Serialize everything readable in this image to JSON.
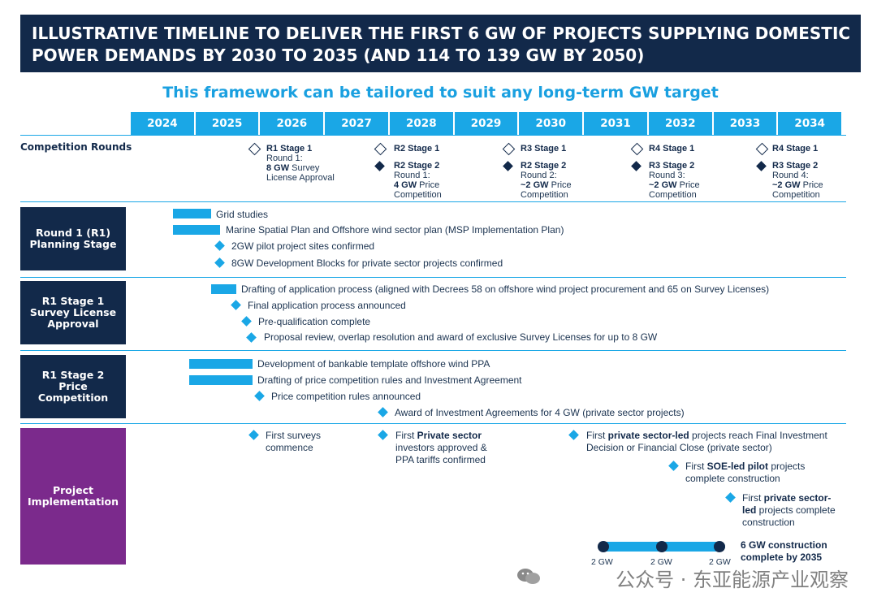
{
  "header": {
    "line1": "ILLUSTRATIVE TIMELINE TO DELIVER THE FIRST 6 GW OF PROJECTS SUPPLYING DOMESTIC",
    "line2": "POWER DEMANDS BY 2030 TO 2035 (AND 114 TO 139 GW BY 2050)"
  },
  "subtitle": "This framework can be tailored to suit any long-term GW target",
  "years": [
    "2024",
    "2025",
    "2026",
    "2027",
    "2028",
    "2029",
    "2030",
    "2031",
    "2032",
    "2033",
    "2034"
  ],
  "competition": {
    "label": "Competition Rounds",
    "r1": {
      "title": "R1 Stage 1",
      "l1": "Round 1:",
      "l2b": "8 GW",
      "l2": " Survey",
      "l3": "License Approval"
    },
    "rounds": [
      {
        "s1": "R2 Stage 1",
        "s2": "R2 Stage 2",
        "a": "Round 1:",
        "bold": "4 GW",
        "rest": " Price",
        "c": "Competition"
      },
      {
        "s1": "R3 Stage 1",
        "s2": "R2 Stage 2",
        "a": "Round 2:",
        "bold": "~2 GW",
        "rest": " Price",
        "c": "Competition"
      },
      {
        "s1": "R4 Stage 1",
        "s2": "R3 Stage 2",
        "a": "Round 3:",
        "bold": "~2 GW",
        "rest": " Price",
        "c": "Competition"
      },
      {
        "s1": "R4 Stage 1",
        "s2": "R3 Stage 2",
        "a": "Round 4:",
        "bold": "~2 GW",
        "rest": " Price",
        "c": "Competition"
      }
    ]
  },
  "rows": {
    "planning": {
      "label": "Round 1 (R1) Planning Stage",
      "items": [
        "Grid studies",
        "Marine Spatial Plan and Offshore wind sector plan (MSP Implementation Plan)",
        "2GW pilot project sites confirmed",
        "8GW Development Blocks for private sector projects confirmed"
      ]
    },
    "survey": {
      "label": "R1 Stage 1 Survey License Approval",
      "items": [
        "Drafting of application process (aligned with Decrees 58 on offshore wind project procurement and 65 on Survey Licenses)",
        "Final application process announced",
        "Pre-qualification complete",
        "Proposal review, overlap resolution and award of exclusive Survey Licenses for up to 8 GW"
      ]
    },
    "price": {
      "label": "R1 Stage 2 Price Competition",
      "items": [
        "Development of bankable template offshore wind PPA",
        "Drafting of price competition rules and Investment Agreement",
        "Price competition rules announced",
        "Award of Investment Agreements for 4 GW (private sector projects)"
      ]
    },
    "impl": {
      "label": "Project Implementation",
      "m1a": "First surveys",
      "m1b": "commence",
      "m2pre": "First ",
      "m2b": "Private sector",
      "m2c": "investors approved &",
      "m2d": "PPA tariffs confirmed",
      "m3pre": "First ",
      "m3b": "private sector-led",
      "m3post": " projects reach Final Investment",
      "m3d": "Decision or Financial Close (private sector)",
      "m4pre": "First ",
      "m4b": "SOE-led pilot",
      "m4post": " projects",
      "m4d": "complete construction",
      "m5pre": "First ",
      "m5b": "private sector-",
      "m5c": "led",
      "m5post": " projects complete",
      "m5d": "construction",
      "gw": [
        "2 GW",
        "2 GW",
        "2 GW"
      ],
      "final1": "6 GW construction",
      "final2": "complete by 2035"
    }
  },
  "watermark": "公众号 · 东亚能源产业观察",
  "colors": {
    "navy": "#12294a",
    "blue": "#1aa7e6",
    "purple": "#7b2a8c"
  }
}
